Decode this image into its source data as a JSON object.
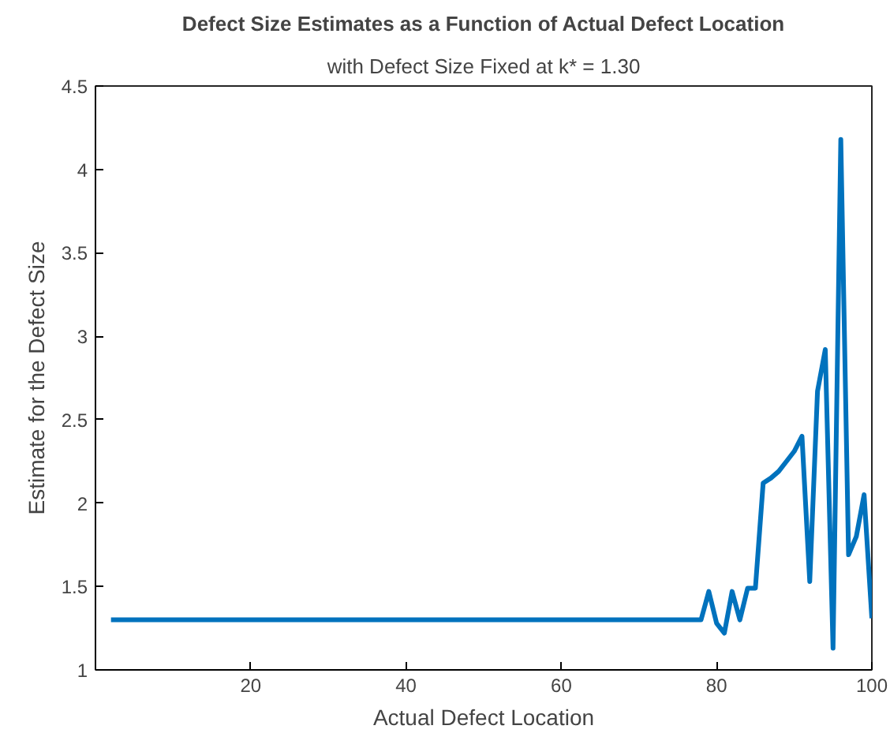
{
  "chart_data": {
    "type": "line",
    "title": "Defect Size Estimates as a Function of Actual Defect Location",
    "subtitle": "with Defect Size Fixed at k* = 1.30",
    "xlabel": "Actual Defect Location",
    "ylabel": "Estimate for the Defect Size",
    "x": [
      2,
      78,
      79,
      80,
      81,
      82,
      83,
      84,
      85,
      86,
      87,
      88,
      89,
      90,
      91,
      92,
      93,
      94,
      95,
      96,
      97,
      98,
      99,
      100
    ],
    "series": [
      {
        "color": "#0072bd",
        "values": [
          1.3,
          1.3,
          1.47,
          1.28,
          1.22,
          1.47,
          1.3,
          1.49,
          1.49,
          2.12,
          2.15,
          2.19,
          2.25,
          2.31,
          2.4,
          1.53,
          2.67,
          2.92,
          1.13,
          4.18,
          1.69,
          1.8,
          2.05,
          1.31
        ]
      }
    ],
    "xlim": [
      0,
      100
    ],
    "ylim": [
      1,
      4.5
    ],
    "xticks": [
      20,
      40,
      60,
      80,
      100
    ],
    "yticks": [
      1,
      1.5,
      2,
      2.5,
      3,
      3.5,
      4,
      4.5
    ],
    "grid": false
  }
}
